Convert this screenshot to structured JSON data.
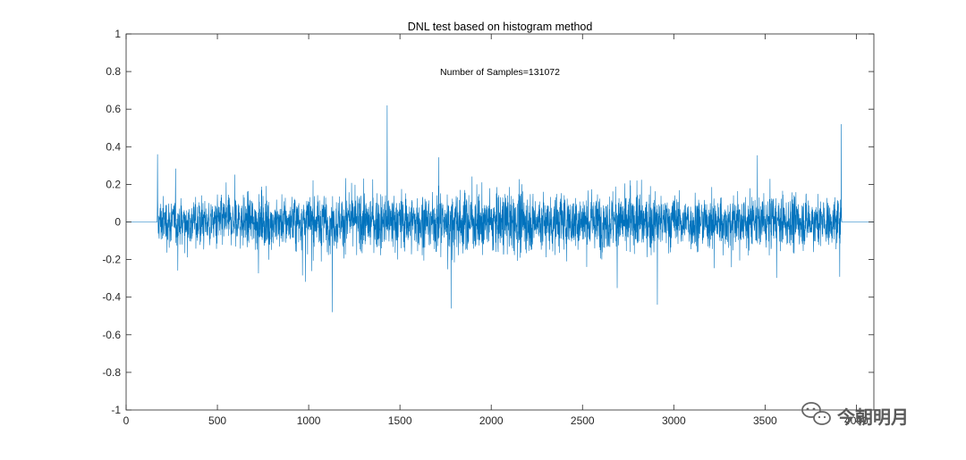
{
  "chart_data": {
    "type": "line",
    "title": "DNL test based on histogram method",
    "annotation": "Number of Samples=131072",
    "xlabel": "",
    "ylabel": "",
    "xlim": [
      0,
      4096
    ],
    "ylim": [
      -1,
      1
    ],
    "x_ticks": [
      0,
      500,
      1000,
      1500,
      2000,
      2500,
      3000,
      3500,
      4000
    ],
    "x_tick_labels": [
      "0",
      "500",
      "1000",
      "1500",
      "2000",
      "2500",
      "3000",
      "3500",
      "4000"
    ],
    "y_ticks": [
      1,
      0.8,
      0.6,
      0.4,
      0.2,
      0,
      -0.2,
      -0.4,
      -0.6,
      -0.8,
      -1
    ],
    "y_tick_labels": [
      "1",
      "0.8",
      "0.6",
      "0.4",
      "0.2",
      "0",
      "-0.2",
      "-0.4",
      "-0.6",
      "-0.8",
      "-1"
    ],
    "grid": false,
    "line_color": "#0072BD",
    "series": [
      {
        "description": "DNL per code (noise-like)",
        "zero_before_code": 170,
        "zero_after_code": 3920,
        "typical_amplitude": 0.12,
        "outer_envelope": [
          -0.48,
          0.62
        ],
        "key_points": [
          {
            "x": 0,
            "y": 0
          },
          {
            "x": 170,
            "y": 0
          },
          {
            "x": 172,
            "y": 0.36
          },
          {
            "x": 1430,
            "y": 0.62
          },
          {
            "x": 1130,
            "y": -0.48
          },
          {
            "x": 1780,
            "y": -0.46
          },
          {
            "x": 2910,
            "y": -0.44
          },
          {
            "x": 3918,
            "y": 0.52
          },
          {
            "x": 3920,
            "y": 0
          },
          {
            "x": 4096,
            "y": 0
          }
        ]
      }
    ]
  },
  "watermark": {
    "icon": "wechat-icon",
    "text": "今朝明月"
  },
  "colors": {
    "axis": "#262626",
    "background": "#ffffff",
    "line": "#0072BD"
  }
}
